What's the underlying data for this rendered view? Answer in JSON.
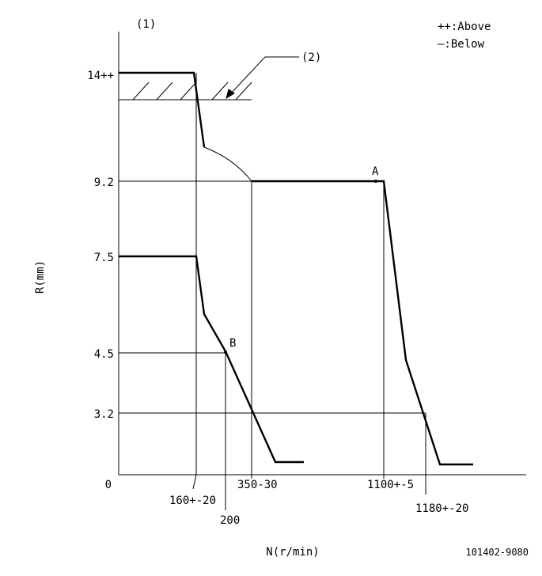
{
  "labels": {
    "figure": "(1)",
    "above": "++:Above",
    "below": "—:Below",
    "callout": "(2)",
    "point_a": "A",
    "point_b": "B",
    "y_axis": "R(mm)",
    "x_axis": "N(r/min)",
    "code": "101402-9080"
  },
  "y_ticks": [
    "14++",
    "9.2",
    "7.5",
    "4.5",
    "3.2",
    "0"
  ],
  "x_ticks": [
    "160+-20",
    "200",
    "350-30",
    "1100+-5",
    "1180+-20"
  ]
}
